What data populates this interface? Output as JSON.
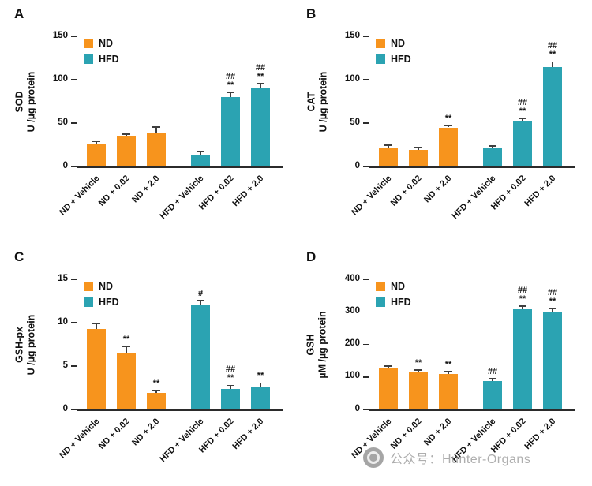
{
  "watermark": {
    "label": "公众号：Hunter-Organs",
    "icon": "camera-logo"
  },
  "colors": {
    "nd": "#F7941D",
    "hfd": "#2BA3B2",
    "axis": "#2b2b2b",
    "error": "#3f3f3f"
  },
  "legend": [
    {
      "label": "ND",
      "color_key": "nd"
    },
    {
      "label": "HFD",
      "color_key": "hfd"
    }
  ],
  "chart_data": [
    {
      "type": "bar",
      "panel": "A",
      "ylabel": [
        "SOD",
        "U /µg protein"
      ],
      "ylim": [
        0,
        150
      ],
      "yticks": [
        0,
        50,
        100,
        150
      ],
      "categories": [
        "ND + Vehicle",
        "ND + 0.02",
        "ND + 2.0",
        "HFD + Vehicle",
        "HFD + 0.02",
        "HFD + 2.0"
      ],
      "series_colors": [
        "nd",
        "nd",
        "nd",
        "hfd",
        "hfd",
        "hfd"
      ],
      "values": [
        26,
        35,
        38,
        14,
        80,
        91
      ],
      "errors": [
        2,
        1.5,
        7,
        2,
        5,
        4
      ],
      "sig": [
        "",
        "",
        "",
        "",
        "##\n**",
        "##\n**"
      ],
      "legend_position": "top-left",
      "grid": false
    },
    {
      "type": "bar",
      "panel": "B",
      "ylabel": [
        "CAT",
        "U /µg protein"
      ],
      "ylim": [
        0,
        150
      ],
      "yticks": [
        0,
        50,
        100,
        150
      ],
      "categories": [
        "ND + Vehicle",
        "ND + 0.02",
        "ND + 2.0",
        "HFD + Vehicle",
        "HFD + 0.02",
        "HFD + 2.0"
      ],
      "series_colors": [
        "nd",
        "nd",
        "nd",
        "hfd",
        "hfd",
        "hfd"
      ],
      "values": [
        21,
        19,
        45,
        21,
        52,
        115
      ],
      "errors": [
        3,
        2,
        1.5,
        2,
        3,
        5
      ],
      "sig": [
        "",
        "",
        "**",
        "",
        "##\n**",
        "##\n**"
      ],
      "legend_position": "top-left",
      "grid": false
    },
    {
      "type": "bar",
      "panel": "C",
      "ylabel": [
        "GSH-px",
        "U /µg protein"
      ],
      "ylim": [
        0,
        15
      ],
      "yticks": [
        0,
        5,
        10,
        15
      ],
      "categories": [
        "ND + Vehicle",
        "ND + 0.02",
        "ND + 2.0",
        "HFD + Vehicle",
        "HFD + 0.02",
        "HFD + 2.0"
      ],
      "series_colors": [
        "nd",
        "nd",
        "nd",
        "hfd",
        "hfd",
        "hfd"
      ],
      "values": [
        9.3,
        6.5,
        1.9,
        12.1,
        2.4,
        2.6
      ],
      "errors": [
        0.5,
        0.7,
        0.2,
        0.4,
        0.3,
        0.4
      ],
      "sig": [
        "",
        "**",
        "**",
        "#",
        "##\n**",
        "**"
      ],
      "legend_position": "top-left",
      "grid": false
    },
    {
      "type": "bar",
      "panel": "D",
      "ylabel": [
        "GSH",
        "µM /µg protein"
      ],
      "ylim": [
        0,
        400
      ],
      "yticks": [
        0,
        100,
        200,
        300,
        400
      ],
      "categories": [
        "ND + Vehicle",
        "ND + 0.02",
        "ND + 2.0",
        "HFD + Vehicle",
        "HFD + 0.02",
        "HFD + 2.0"
      ],
      "series_colors": [
        "nd",
        "nd",
        "nd",
        "hfd",
        "hfd",
        "hfd"
      ],
      "values": [
        128,
        113,
        110,
        88,
        308,
        300
      ],
      "errors": [
        4,
        6,
        5,
        5,
        8,
        7
      ],
      "sig": [
        "",
        "**",
        "**",
        "##",
        "##\n**",
        "##\n**"
      ],
      "legend_position": "top-left",
      "grid": false
    }
  ]
}
